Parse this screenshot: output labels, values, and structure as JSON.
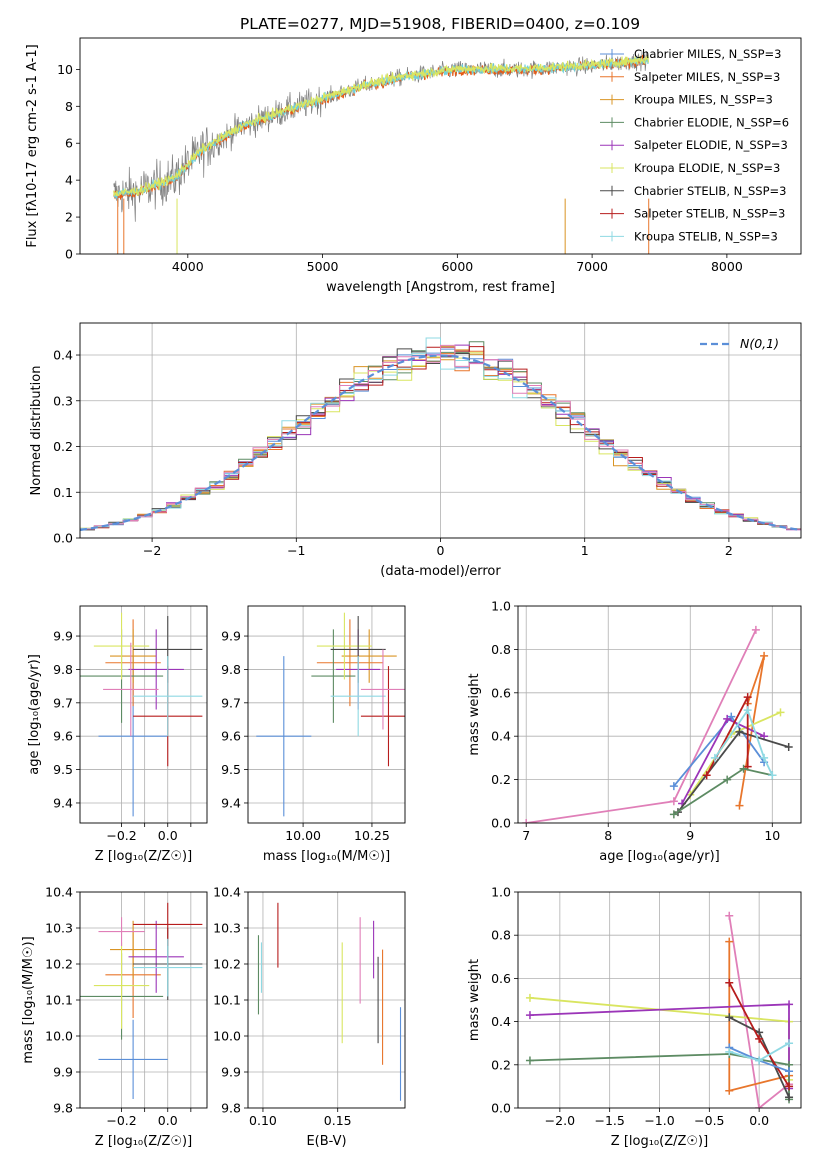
{
  "figure": {
    "title": "PLATE=0277, MJD=51908, FIBERID=0400, z=0.109"
  },
  "colors": {
    "Chabrier MILES": "#5b8fd8",
    "Salpeter MILES": "#e8762c",
    "Kroupa MILES": "#d99424",
    "Chabrier ELODIE": "#5d8b63",
    "Salpeter ELODIE": "#9b35b8",
    "Kroupa ELODIE": "#d9e560",
    "Chabrier STELIB": "#4a4a4a",
    "Salpeter STELIB": "#b71d1d",
    "Kroupa STELIB": "#8fd9e3",
    "Pink": "#e07fb8",
    "Model": "#e55a15",
    "Model2": "#6fd1dc",
    "Data": "#7f7f7f",
    "Normal": "#5b8fd8"
  },
  "chart_data": [
    {
      "id": "spectrum",
      "type": "line",
      "xlabel": "wavelength [Angstrom, rest frame]",
      "ylabel": "Flux [f$_\\lambda$10$^{-17}$ erg cm$^{-2}$ s$^{-1}$ A$^{-1}$]",
      "xlim": [
        3200,
        8550
      ],
      "ylim": [
        0,
        11.7
      ],
      "xticks": [
        4000,
        5000,
        6000,
        7000,
        8000
      ],
      "yticks": [
        0,
        2,
        4,
        6,
        8,
        10
      ],
      "continuum_points": [
        [
          3450,
          3.2
        ],
        [
          3650,
          3.4
        ],
        [
          3750,
          3.7
        ],
        [
          3900,
          4.1
        ],
        [
          4100,
          5.6
        ],
        [
          4400,
          6.9
        ],
        [
          4700,
          7.7
        ],
        [
          5000,
          8.4
        ],
        [
          5300,
          9.1
        ],
        [
          5600,
          9.6
        ],
        [
          6000,
          10.0
        ],
        [
          6500,
          10.0
        ],
        [
          7000,
          10.2
        ],
        [
          7400,
          10.5
        ]
      ],
      "legend": [
        {
          "label": "Chabrier MILES, N_SSP=3",
          "color": "Chabrier MILES"
        },
        {
          "label": "Salpeter MILES, N_SSP=3",
          "color": "Salpeter MILES"
        },
        {
          "label": "Kroupa MILES, N_SSP=3",
          "color": "Kroupa MILES"
        },
        {
          "label": "Chabrier ELODIE, N_SSP=6",
          "color": "Chabrier ELODIE"
        },
        {
          "label": "Salpeter ELODIE, N_SSP=3",
          "color": "Salpeter ELODIE"
        },
        {
          "label": "Kroupa ELODIE, N_SSP=3",
          "color": "Kroupa ELODIE"
        },
        {
          "label": "Chabrier STELIB, N_SSP=3",
          "color": "Chabrier STELIB"
        },
        {
          "label": "Salpeter STELIB, N_SSP=3",
          "color": "Salpeter STELIB"
        },
        {
          "label": "Kroupa STELIB, N_SSP=3",
          "color": "Kroupa STELIB"
        }
      ],
      "legend_location": "right"
    },
    {
      "id": "residuals",
      "type": "histogram",
      "xlabel": "(data-model)/error",
      "ylabel": "Normed distribution",
      "xlim": [
        -2.5,
        2.5
      ],
      "ylim": [
        0,
        0.47
      ],
      "xticks": [
        -2,
        -1,
        0,
        1,
        2
      ],
      "xticklabels": [
        "−2",
        "−1",
        "0",
        "1",
        "2"
      ],
      "yticks": [
        0.0,
        0.1,
        0.2,
        0.3,
        0.4
      ],
      "yticklabels": [
        "0.0",
        "0.1",
        "0.2",
        "0.3",
        "0.4"
      ],
      "legend": "N(0,1)",
      "legend_location": "upper right",
      "grid": true
    },
    {
      "id": "age_vs_Z",
      "type": "errorbar",
      "xlabel": "Z [log₁₀(Z/Z☉)]",
      "ylabel": "age  [log₁₀(age/yr)]",
      "xlim": [
        -0.38,
        0.17
      ],
      "ylim": [
        9.34,
        9.99
      ],
      "xticks": [
        -0.2,
        -0.1,
        0.0,
        0.1
      ],
      "xticklabels": [
        "−0.2",
        "",
        "0.0",
        ""
      ],
      "yticks": [
        9.4,
        9.5,
        9.6,
        9.7,
        9.8,
        9.9
      ],
      "yticklabels": [
        "9.4",
        "9.5",
        "9.6",
        "9.7",
        "9.8",
        "9.9"
      ],
      "points": [
        {
          "x": -0.15,
          "y": 9.6,
          "xerr": 0.15,
          "yerr": 0.24,
          "color": "Chabrier MILES"
        },
        {
          "x": -0.15,
          "y": 9.82,
          "xerr": 0.12,
          "yerr": 0.13,
          "color": "Salpeter MILES"
        },
        {
          "x": -0.15,
          "y": 9.84,
          "xerr": 0.1,
          "yerr": 0.08,
          "color": "Kroupa MILES"
        },
        {
          "x": -0.2,
          "y": 9.78,
          "xerr": 0.18,
          "yerr": 0.14,
          "color": "Chabrier ELODIE"
        },
        {
          "x": -0.05,
          "y": 9.8,
          "xerr": 0.12,
          "yerr": 0.12,
          "color": "Salpeter ELODIE"
        },
        {
          "x": -0.2,
          "y": 9.87,
          "xerr": 0.12,
          "yerr": 0.1,
          "color": "Kroupa ELODIE"
        },
        {
          "x": 0.0,
          "y": 9.86,
          "xerr": 0.15,
          "yerr": 0.1,
          "color": "Chabrier STELIB"
        },
        {
          "x": 0.0,
          "y": 9.66,
          "xerr": 0.15,
          "yerr": 0.15,
          "color": "Salpeter STELIB"
        },
        {
          "x": 0.0,
          "y": 9.72,
          "xerr": 0.15,
          "yerr": 0.12,
          "color": "Kroupa STELIB"
        },
        {
          "x": -0.16,
          "y": 9.74,
          "xerr": 0.12,
          "yerr": 0.14,
          "color": "Pink"
        }
      ]
    },
    {
      "id": "age_vs_mass",
      "type": "errorbar",
      "xlabel": "mass [log₁₀(M/M☉)]",
      "ylabel": "",
      "xlim": [
        9.8,
        10.37
      ],
      "ylim": [
        9.34,
        9.99
      ],
      "xticks": [
        10.0,
        10.25
      ],
      "xticklabels": [
        "10.00",
        "10.25"
      ],
      "yticks": [
        9.4,
        9.5,
        9.6,
        9.7,
        9.8,
        9.9
      ],
      "yticklabels": [
        "9.4",
        "9.5",
        "9.6",
        "9.7",
        "9.8",
        "9.9"
      ],
      "points": [
        {
          "x": 9.93,
          "y": 9.6,
          "xerr": 0.1,
          "yerr": 0.24,
          "color": "Chabrier MILES"
        },
        {
          "x": 10.17,
          "y": 9.82,
          "xerr": 0.12,
          "yerr": 0.13,
          "color": "Salpeter MILES"
        },
        {
          "x": 10.24,
          "y": 9.84,
          "xerr": 0.1,
          "yerr": 0.08,
          "color": "Kroupa MILES"
        },
        {
          "x": 10.11,
          "y": 9.78,
          "xerr": 0.08,
          "yerr": 0.14,
          "color": "Chabrier ELODIE"
        },
        {
          "x": 10.2,
          "y": 9.8,
          "xerr": 0.08,
          "yerr": 0.12,
          "color": "Salpeter ELODIE"
        },
        {
          "x": 10.15,
          "y": 9.87,
          "xerr": 0.1,
          "yerr": 0.1,
          "color": "Kroupa ELODIE"
        },
        {
          "x": 10.2,
          "y": 9.86,
          "xerr": 0.1,
          "yerr": 0.1,
          "color": "Chabrier STELIB"
        },
        {
          "x": 10.31,
          "y": 9.66,
          "xerr": 0.1,
          "yerr": 0.15,
          "color": "Salpeter STELIB"
        },
        {
          "x": 10.2,
          "y": 9.72,
          "xerr": 0.1,
          "yerr": 0.12,
          "color": "Kroupa STELIB"
        },
        {
          "x": 10.29,
          "y": 9.74,
          "xerr": 0.08,
          "yerr": 0.12,
          "color": "Pink"
        }
      ]
    },
    {
      "id": "mass_weight_vs_age",
      "type": "line",
      "xlabel": "age  [log₁₀(age/yr)]",
      "ylabel": "mass weight",
      "xlim": [
        6.9,
        10.35
      ],
      "ylim": [
        0,
        1.0
      ],
      "xticks": [
        7,
        8,
        9,
        10
      ],
      "yticks": [
        0.0,
        0.2,
        0.4,
        0.6,
        0.8,
        1.0
      ],
      "yticklabels": [
        "0.0",
        "0.2",
        "0.4",
        "0.6",
        "0.8",
        "1.0"
      ],
      "series": [
        {
          "color": "Pink",
          "x": [
            7.0,
            8.8,
            9.8
          ],
          "y": [
            0.0,
            0.1,
            0.89
          ]
        },
        {
          "color": "Salpeter MILES",
          "x": [
            9.6,
            9.9,
            9.7
          ],
          "y": [
            0.08,
            0.77,
            0.55
          ]
        },
        {
          "color": "Chabrier MILES",
          "x": [
            8.8,
            9.5,
            9.9
          ],
          "y": [
            0.17,
            0.49,
            0.28
          ]
        },
        {
          "color": "Kroupa ELODIE",
          "x": [
            9.0,
            9.5,
            10.1
          ],
          "y": [
            0.13,
            0.41,
            0.51
          ]
        },
        {
          "color": "Salpeter ELODIE",
          "x": [
            8.9,
            9.45,
            9.9
          ],
          "y": [
            0.09,
            0.48,
            0.4
          ]
        },
        {
          "color": "Chabrier STELIB",
          "x": [
            8.85,
            9.6,
            10.2
          ],
          "y": [
            0.05,
            0.42,
            0.35
          ]
        },
        {
          "color": "Salpeter STELIB",
          "x": [
            9.2,
            9.7,
            9.7
          ],
          "y": [
            0.22,
            0.58,
            0.26
          ]
        },
        {
          "color": "Chabrier ELODIE",
          "x": [
            8.8,
            9.45,
            9.65,
            10.0
          ],
          "y": [
            0.04,
            0.2,
            0.25,
            0.22
          ]
        },
        {
          "color": "Kroupa STELIB",
          "x": [
            9.3,
            9.7,
            9.9,
            10.0
          ],
          "y": [
            0.3,
            0.52,
            0.3,
            0.22
          ]
        }
      ]
    },
    {
      "id": "mass_vs_Z",
      "type": "errorbar",
      "xlabel": "Z [log₁₀(Z/Z☉)]",
      "ylabel": "mass [log₁₀(M/M☉)]",
      "xlim": [
        -0.38,
        0.17
      ],
      "ylim": [
        9.8,
        10.4
      ],
      "xticks": [
        -0.2,
        -0.1,
        0.0,
        0.1
      ],
      "xticklabels": [
        "−0.2",
        "",
        "0.0",
        ""
      ],
      "yticks": [
        9.8,
        9.9,
        10.0,
        10.1,
        10.2,
        10.3,
        10.4
      ],
      "yticklabels": [
        "9.8",
        "9.9",
        "10.0",
        "10.1",
        "10.2",
        "10.3",
        "10.4"
      ],
      "points": [
        {
          "x": -0.15,
          "y": 9.935,
          "xerr": 0.15,
          "yerr": 0.11,
          "color": "Chabrier MILES"
        },
        {
          "x": -0.15,
          "y": 10.17,
          "xerr": 0.12,
          "yerr": 0.12,
          "color": "Salpeter MILES"
        },
        {
          "x": -0.15,
          "y": 10.24,
          "xerr": 0.1,
          "yerr": 0.08,
          "color": "Kroupa MILES"
        },
        {
          "x": -0.2,
          "y": 10.11,
          "xerr": 0.18,
          "yerr": 0.12,
          "color": "Chabrier ELODIE"
        },
        {
          "x": -0.05,
          "y": 10.22,
          "xerr": 0.12,
          "yerr": 0.1,
          "color": "Salpeter ELODIE"
        },
        {
          "x": -0.2,
          "y": 10.14,
          "xerr": 0.12,
          "yerr": 0.12,
          "color": "Kroupa ELODIE"
        },
        {
          "x": 0.0,
          "y": 10.2,
          "xerr": 0.15,
          "yerr": 0.1,
          "color": "Chabrier STELIB"
        },
        {
          "x": 0.0,
          "y": 10.31,
          "xerr": 0.15,
          "yerr": 0.06,
          "color": "Salpeter STELIB"
        },
        {
          "x": 0.0,
          "y": 10.19,
          "xerr": 0.15,
          "yerr": 0.08,
          "color": "Kroupa STELIB"
        },
        {
          "x": -0.2,
          "y": 10.29,
          "xerr": 0.1,
          "yerr": 0.04,
          "color": "Pink"
        }
      ]
    },
    {
      "id": "mass_vs_EBV",
      "type": "errorbar",
      "xlabel": "E(B-V)",
      "ylabel": "",
      "xlim": [
        0.09,
        0.195
      ],
      "ylim": [
        9.8,
        10.4
      ],
      "xticks": [
        0.1,
        0.15
      ],
      "xticklabels": [
        "0.10",
        "0.15"
      ],
      "yticks": [
        9.8,
        9.9,
        10.0,
        10.1,
        10.2,
        10.3,
        10.4
      ],
      "yticklabels": [
        "9.8",
        "9.9",
        "10.0",
        "10.1",
        "10.2",
        "10.3",
        "10.4"
      ],
      "points": [
        {
          "x": 0.192,
          "y": 9.95,
          "xerr": 0,
          "yerr": 0.13,
          "color": "Chabrier MILES"
        },
        {
          "x": 0.18,
          "y": 10.08,
          "xerr": 0,
          "yerr": 0.16,
          "color": "Salpeter MILES"
        },
        {
          "x": 0.097,
          "y": 10.17,
          "xerr": 0,
          "yerr": 0.11,
          "color": "Chabrier ELODIE"
        },
        {
          "x": 0.174,
          "y": 10.24,
          "xerr": 0,
          "yerr": 0.08,
          "color": "Salpeter ELODIE"
        },
        {
          "x": 0.153,
          "y": 10.12,
          "xerr": 0,
          "yerr": 0.14,
          "color": "Kroupa ELODIE"
        },
        {
          "x": 0.177,
          "y": 10.1,
          "xerr": 0,
          "yerr": 0.12,
          "color": "Chabrier STELIB"
        },
        {
          "x": 0.11,
          "y": 10.28,
          "xerr": 0,
          "yerr": 0.09,
          "color": "Salpeter STELIB"
        },
        {
          "x": 0.099,
          "y": 10.19,
          "xerr": 0,
          "yerr": 0.07,
          "color": "Kroupa STELIB"
        },
        {
          "x": 0.165,
          "y": 10.21,
          "xerr": 0,
          "yerr": 0.12,
          "color": "Pink"
        }
      ]
    },
    {
      "id": "mass_weight_vs_Z",
      "type": "line",
      "xlabel": "Z [log₁₀(Z/Z☉)]",
      "ylabel": "mass weight",
      "xlim": [
        -2.42,
        0.42
      ],
      "ylim": [
        0,
        1.0
      ],
      "xticks": [
        -2.0,
        -1.5,
        -1.0,
        -0.5,
        0.0
      ],
      "xticklabels": [
        "−2.0",
        "−1.5",
        "−1.0",
        "−0.5",
        "0.0"
      ],
      "yticks": [
        0.0,
        0.2,
        0.4,
        0.6,
        0.8,
        1.0
      ],
      "yticklabels": [
        "0.0",
        "0.2",
        "0.4",
        "0.6",
        "0.8",
        "1.0"
      ],
      "series": [
        {
          "color": "Pink",
          "x": [
            -0.3,
            0.0,
            0.3
          ],
          "y": [
            0.89,
            0.0,
            0.11
          ]
        },
        {
          "color": "Salpeter MILES",
          "x": [
            -0.3,
            -0.3,
            0.3
          ],
          "y": [
            0.77,
            0.08,
            0.15
          ]
        },
        {
          "color": "Kroupa ELODIE",
          "x": [
            -2.3,
            0.3,
            0.3
          ],
          "y": [
            0.51,
            0.4,
            0.13
          ]
        },
        {
          "color": "Salpeter ELODIE",
          "x": [
            -2.3,
            0.3,
            0.3
          ],
          "y": [
            0.43,
            0.48,
            0.09
          ]
        },
        {
          "color": "Chabrier ELODIE",
          "x": [
            -2.3,
            -0.3,
            0.3,
            0.3
          ],
          "y": [
            0.22,
            0.25,
            0.2,
            0.04
          ]
        },
        {
          "color": "Chabrier STELIB",
          "x": [
            -0.3,
            0.0,
            0.3
          ],
          "y": [
            0.42,
            0.35,
            0.05
          ]
        },
        {
          "color": "Salpeter STELIB",
          "x": [
            -0.3,
            0.0,
            0.3
          ],
          "y": [
            0.58,
            0.32,
            0.1
          ]
        },
        {
          "color": "Chabrier MILES",
          "x": [
            -0.3,
            0.0,
            0.3
          ],
          "y": [
            0.28,
            0.22,
            0.17
          ]
        },
        {
          "color": "Kroupa STELIB",
          "x": [
            -0.3,
            0.0,
            0.3
          ],
          "y": [
            0.26,
            0.22,
            0.3
          ]
        }
      ]
    }
  ]
}
